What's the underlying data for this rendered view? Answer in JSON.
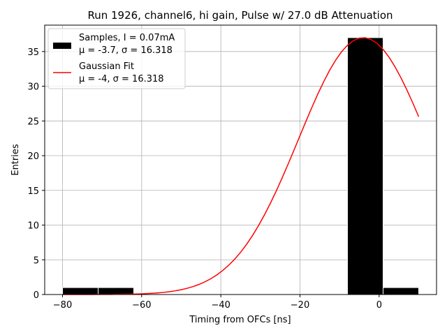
{
  "chart_data": {
    "type": "bar",
    "title": "Run 1926, channel6, hi gain, Pulse w/ 27.0 dB Attenuation",
    "xlabel": "Timing from OFCs [ns]",
    "ylabel": "Entries",
    "xlim": [
      -84.5,
      14.5
    ],
    "ylim": [
      0,
      38.8
    ],
    "xticks": [
      -80,
      -60,
      -40,
      -20,
      0
    ],
    "yticks": [
      0,
      5,
      10,
      15,
      20,
      25,
      30,
      35
    ],
    "grid": true,
    "legend_position": "top-left",
    "histogram": {
      "name": "Samples, I = 0.07mA",
      "name_line2": "μ = -3.7, σ = 16.318",
      "color": "#000000",
      "bins": [
        {
          "x0": -80,
          "x1": -71,
          "count": 1
        },
        {
          "x0": -71,
          "x1": -62,
          "count": 1
        },
        {
          "x0": -8,
          "x1": 1,
          "count": 37
        },
        {
          "x0": 1,
          "x1": 10,
          "count": 1
        }
      ]
    },
    "fit": {
      "name": "Gaussian Fit",
      "name_line2": "μ = -4, σ = 16.318",
      "color": "#ff0000",
      "mu": -4,
      "sigma": 16.318,
      "amplitude": 37,
      "x_range": [
        -80,
        10
      ]
    }
  }
}
